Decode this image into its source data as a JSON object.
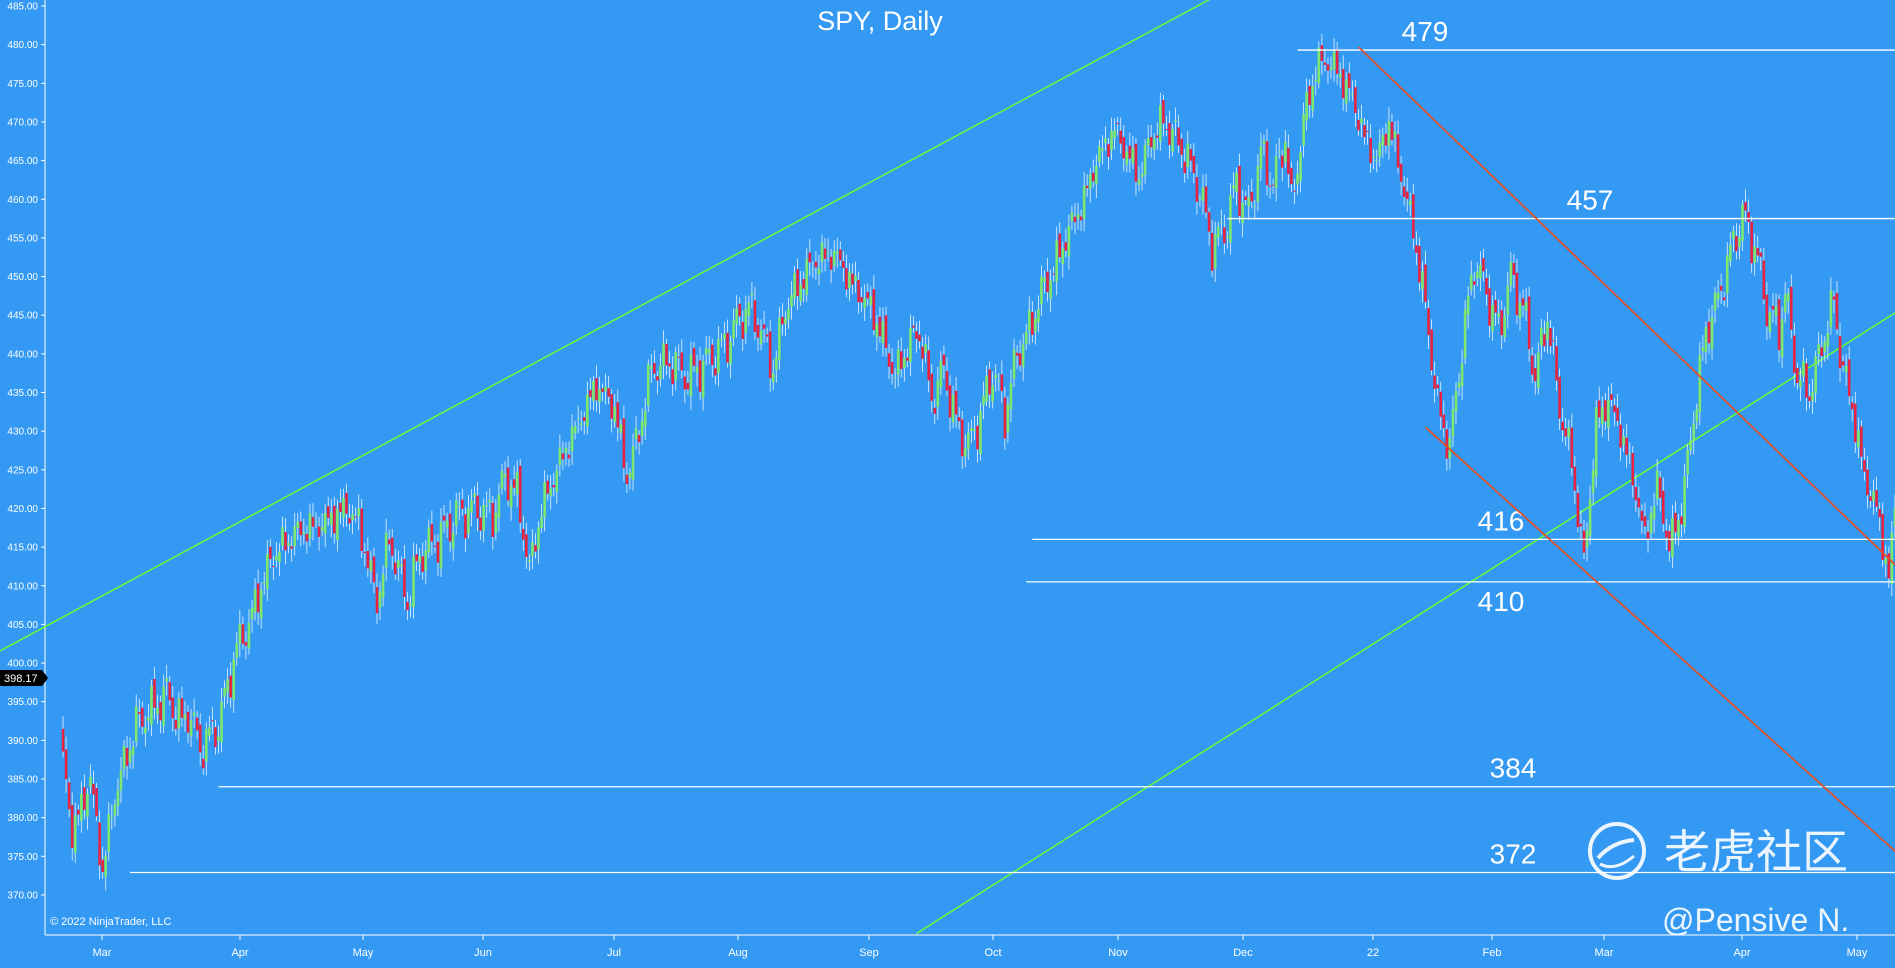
{
  "chart_data": {
    "type": "candlestick",
    "title": "SPY, Daily",
    "ylim": [
      367.5,
      487.5
    ],
    "y_ticks": [
      "485.00",
      "480.00",
      "475.00",
      "470.00",
      "465.00",
      "460.00",
      "455.00",
      "450.00",
      "445.00",
      "440.00",
      "435.00",
      "430.00",
      "425.00",
      "420.00",
      "415.00",
      "410.00",
      "405.00",
      "400.00",
      "395.00",
      "390.00",
      "385.00",
      "380.00",
      "375.00",
      "370.00"
    ],
    "x_ticks": [
      "Mar",
      "Apr",
      "May",
      "Jun",
      "Jul",
      "Aug",
      "Sep",
      "Oct",
      "Nov",
      "Dec",
      "22",
      "Feb",
      "Mar",
      "Apr",
      "May"
    ],
    "current_price": "398.17",
    "colors": {
      "background": "#3399f3",
      "up": "#7ee86e",
      "down": "#e8233f",
      "channel": "#66ff33",
      "downtrend": "#e0502a",
      "level": "#ffffff"
    },
    "anchors": [
      [
        0,
        391
      ],
      [
        4,
        378
      ],
      [
        10,
        385
      ],
      [
        14,
        373
      ],
      [
        18,
        383
      ],
      [
        25,
        392
      ],
      [
        30,
        394
      ],
      [
        35,
        396
      ],
      [
        40,
        392
      ],
      [
        42,
        394
      ],
      [
        46,
        389
      ],
      [
        52,
        392
      ],
      [
        58,
        402
      ],
      [
        62,
        405
      ],
      [
        66,
        410
      ],
      [
        70,
        414
      ],
      [
        78,
        417
      ],
      [
        86,
        418
      ],
      [
        94,
        420
      ],
      [
        98,
        418
      ],
      [
        104,
        408
      ],
      [
        108,
        416
      ],
      [
        114,
        408
      ],
      [
        118,
        414
      ],
      [
        124,
        416
      ],
      [
        130,
        419
      ],
      [
        136,
        420
      ],
      [
        142,
        419
      ],
      [
        146,
        424
      ],
      [
        150,
        422
      ],
      [
        154,
        412
      ],
      [
        158,
        420
      ],
      [
        164,
        426
      ],
      [
        170,
        431
      ],
      [
        176,
        436
      ],
      [
        182,
        433
      ],
      [
        186,
        424
      ],
      [
        190,
        430
      ],
      [
        194,
        438
      ],
      [
        200,
        439
      ],
      [
        206,
        437
      ],
      [
        212,
        439
      ],
      [
        218,
        441
      ],
      [
        222,
        444
      ],
      [
        226,
        446
      ],
      [
        230,
        443
      ],
      [
        234,
        438
      ],
      [
        238,
        446
      ],
      [
        244,
        450
      ],
      [
        248,
        452
      ],
      [
        254,
        453
      ],
      [
        260,
        449
      ],
      [
        266,
        446
      ],
      [
        270,
        442
      ],
      [
        274,
        437
      ],
      [
        278,
        441
      ],
      [
        282,
        443
      ],
      [
        286,
        434
      ],
      [
        290,
        438
      ],
      [
        294,
        431
      ],
      [
        298,
        428
      ],
      [
        302,
        432
      ],
      [
        306,
        438
      ],
      [
        310,
        432
      ],
      [
        314,
        440
      ],
      [
        318,
        443
      ],
      [
        322,
        448
      ],
      [
        326,
        451
      ],
      [
        330,
        455
      ],
      [
        336,
        460
      ],
      [
        340,
        465
      ],
      [
        346,
        469
      ],
      [
        350,
        466
      ],
      [
        354,
        463
      ],
      [
        358,
        468
      ],
      [
        362,
        470
      ],
      [
        366,
        468
      ],
      [
        370,
        465
      ],
      [
        374,
        461
      ],
      [
        378,
        454
      ],
      [
        382,
        456
      ],
      [
        386,
        462
      ],
      [
        390,
        458
      ],
      [
        394,
        466
      ],
      [
        398,
        462
      ],
      [
        402,
        468
      ],
      [
        404,
        459
      ],
      [
        408,
        470
      ],
      [
        412,
        477
      ],
      [
        416,
        478
      ],
      [
        420,
        476
      ],
      [
        424,
        473
      ],
      [
        428,
        468
      ],
      [
        432,
        465
      ],
      [
        436,
        470
      ],
      [
        440,
        463
      ],
      [
        444,
        456
      ],
      [
        448,
        446
      ],
      [
        452,
        433
      ],
      [
        456,
        428
      ],
      [
        460,
        441
      ],
      [
        464,
        452
      ],
      [
        468,
        448
      ],
      [
        472,
        443
      ],
      [
        476,
        450
      ],
      [
        480,
        446
      ],
      [
        484,
        437
      ],
      [
        488,
        445
      ],
      [
        492,
        433
      ],
      [
        496,
        426
      ],
      [
        500,
        413
      ],
      [
        504,
        431
      ],
      [
        508,
        434
      ],
      [
        512,
        430
      ],
      [
        516,
        424
      ],
      [
        520,
        416
      ],
      [
        524,
        423
      ],
      [
        528,
        415
      ],
      [
        532,
        420
      ],
      [
        536,
        432
      ],
      [
        540,
        443
      ],
      [
        544,
        447
      ],
      [
        548,
        453
      ],
      [
        552,
        458
      ],
      [
        556,
        454
      ],
      [
        560,
        446
      ],
      [
        564,
        443
      ],
      [
        566,
        448
      ],
      [
        570,
        437
      ],
      [
        574,
        435
      ],
      [
        578,
        441
      ],
      [
        582,
        447
      ],
      [
        584,
        440
      ],
      [
        588,
        433
      ],
      [
        592,
        424
      ],
      [
        596,
        420
      ],
      [
        600,
        411
      ],
      [
        602,
        420
      ],
      [
        606,
        414
      ],
      [
        610,
        404
      ],
      [
        612,
        398
      ]
    ],
    "channel_upper": {
      "start": [
        -28,
        399.8
      ],
      "end": [
        392,
        489
      ]
    },
    "channel_lower": {
      "start": [
        281,
        365
      ],
      "end": [
        718,
        474.3
      ]
    },
    "downtrend_upper": {
      "start": [
        426,
        479.7
      ],
      "end": [
        625,
        404
      ]
    },
    "downtrend_lower": {
      "start": [
        448,
        430.5
      ],
      "end": [
        625,
        367.5
      ]
    },
    "levels": [
      {
        "label": "479",
        "value": 479.3,
        "from": 406
      },
      {
        "label": "457",
        "value": 457.5,
        "from": 383
      },
      {
        "label": "416",
        "value": 416.0,
        "from": 319
      },
      {
        "label": "410",
        "value": 410.5,
        "from": 317
      },
      {
        "label": "384",
        "value": 384.0,
        "from": 52
      },
      {
        "label": "372",
        "value": 372.9,
        "from": 23
      }
    ]
  },
  "copyright": "© 2022 NinjaTrader, LLC",
  "watermark": {
    "brand": "老虎社区",
    "author": "@Pensive N."
  }
}
